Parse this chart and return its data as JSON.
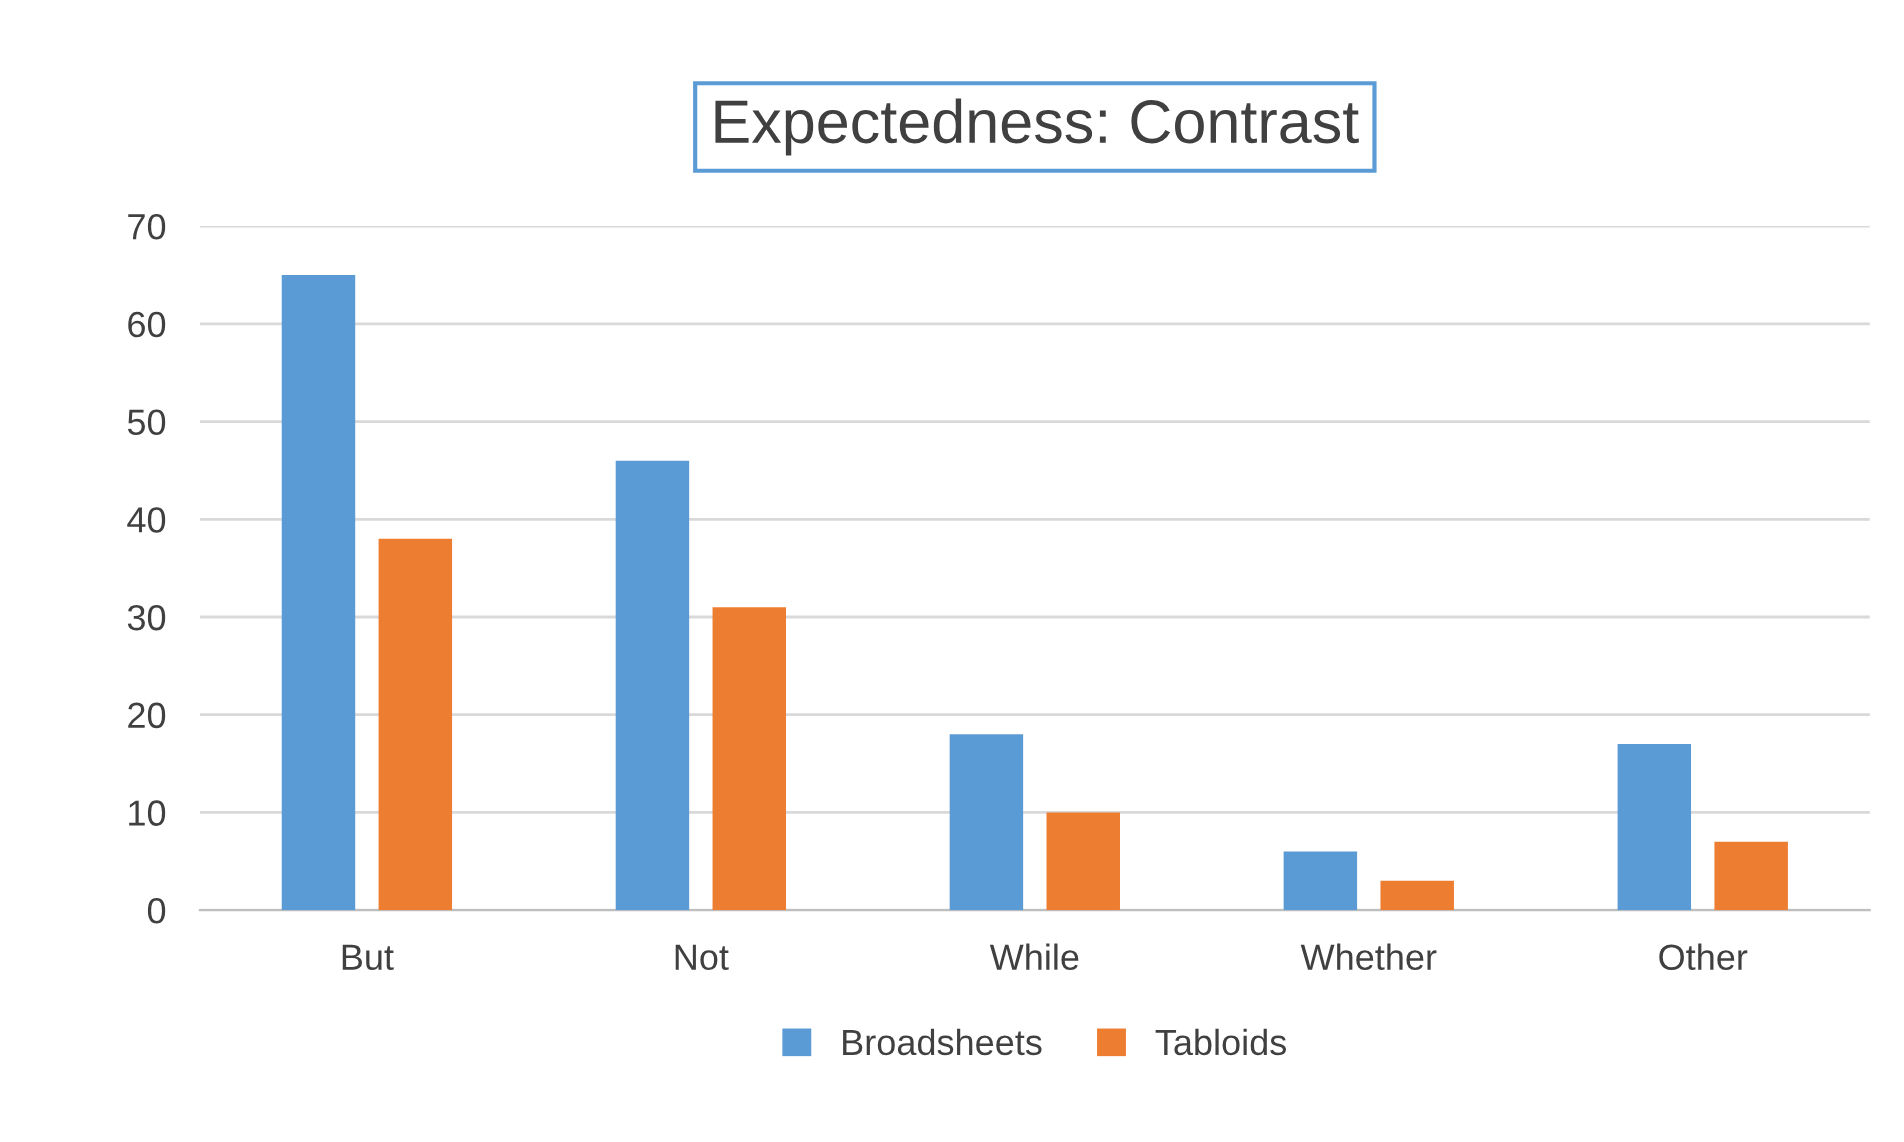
{
  "chart_data": {
    "type": "bar",
    "title": "Expectedness: Contrast",
    "categories": [
      "But",
      "Not",
      "While",
      "Whether",
      "Other"
    ],
    "series": [
      {
        "name": "Broadsheets",
        "color": "#5b9bd5",
        "values": [
          65,
          46,
          18,
          6,
          17
        ]
      },
      {
        "name": "Tabloids",
        "color": "#ed7d31",
        "values": [
          38,
          31,
          10,
          3,
          7
        ]
      }
    ],
    "ylim": [
      0,
      70
    ],
    "yticks": [
      0,
      10,
      20,
      30,
      40,
      50,
      60,
      70
    ],
    "grid": "y",
    "legend": "bottom"
  }
}
